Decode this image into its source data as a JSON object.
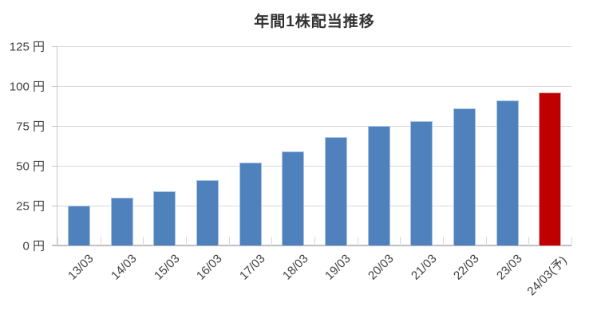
{
  "chart_data": {
    "type": "bar",
    "title": "年間1株配当推移",
    "categories": [
      "13/03",
      "14/03",
      "15/03",
      "16/03",
      "17/03",
      "18/03",
      "19/03",
      "20/03",
      "21/03",
      "22/03",
      "23/03",
      "24/03(予)"
    ],
    "values": [
      25,
      30,
      34,
      41,
      52,
      59,
      68,
      75,
      78,
      86,
      91,
      96
    ],
    "unit": "円",
    "ylabel": "",
    "xlabel": "",
    "ylim": [
      0,
      125
    ],
    "ytick_step": 25,
    "ytick_labels": [
      "0 円",
      "25 円",
      "50 円",
      "75 円",
      "100 円",
      "125 円"
    ],
    "grid": true,
    "legend_position": "none",
    "bar_color": "#4F81BD",
    "bar_edge_color": "#A9C3E2",
    "forecast_index": 11,
    "forecast_color": "#C00000",
    "forecast_edge_color": "#DFA9A8",
    "gridline_color": "#D9D9D9",
    "axis_color": "#BFBFBF",
    "text_color": "#404040"
  }
}
